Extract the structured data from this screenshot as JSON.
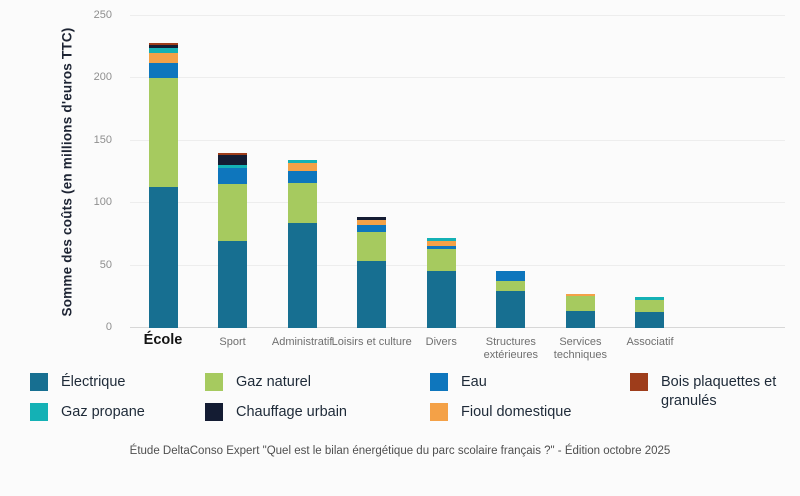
{
  "caption": "Étude DeltaConso Expert \"Quel est le bilan énergétique du parc scolaire français ?\" - Édition octobre 2025",
  "chart_data": {
    "type": "bar",
    "stacked": true,
    "ylabel": "Somme des coûts (en millions d'euros TTC)",
    "xlabel": "",
    "ylim": [
      0,
      250
    ],
    "yticks": [
      0,
      50,
      100,
      150,
      200,
      250
    ],
    "grid": true,
    "categories": [
      "École",
      "Sport",
      "Administratif",
      "Loisirs et culture",
      "Divers",
      "Structures extérieures",
      "Services techniques",
      "Associatif"
    ],
    "series": [
      {
        "name": "Électrique",
        "color": "#176f91",
        "values": [
          113,
          70,
          84,
          54,
          46,
          30,
          14,
          13
        ]
      },
      {
        "name": "Gaz naturel",
        "color": "#a6ca5f",
        "values": [
          87,
          45,
          32,
          23,
          17,
          8,
          12,
          9.5
        ]
      },
      {
        "name": "Eau",
        "color": "#0e76bd",
        "values": [
          12,
          13,
          9.5,
          5.5,
          3,
          8,
          0,
          0
        ]
      },
      {
        "name": "Fioul domestique",
        "color": "#f4a147",
        "values": [
          8,
          0,
          7,
          4,
          4,
          0,
          1.5,
          0
        ]
      },
      {
        "name": "Gaz propane",
        "color": "#14b1b5",
        "values": [
          4,
          2.5,
          2.5,
          0,
          2.5,
          0,
          0,
          2
        ]
      },
      {
        "name": "Chauffage urbain",
        "color": "#141c33",
        "values": [
          3,
          8,
          0,
          2.5,
          0,
          0,
          0,
          0
        ]
      },
      {
        "name": "Bois plaquettes et granulés",
        "color": "#9e3d1b",
        "values": [
          1.5,
          1.5,
          0,
          0,
          0,
          0,
          0,
          0
        ]
      }
    ],
    "totals": [
      228.5,
      140,
      135,
      89,
      72.5,
      46,
      27.5,
      24.5
    ],
    "legend_position": "bottom",
    "legend_columns": [
      [
        "Électrique",
        "Gaz propane"
      ],
      [
        "Gaz naturel",
        "Chauffage urbain"
      ],
      [
        "Eau",
        "Fioul domestique"
      ],
      [
        "Bois plaquettes et granulés"
      ]
    ]
  }
}
